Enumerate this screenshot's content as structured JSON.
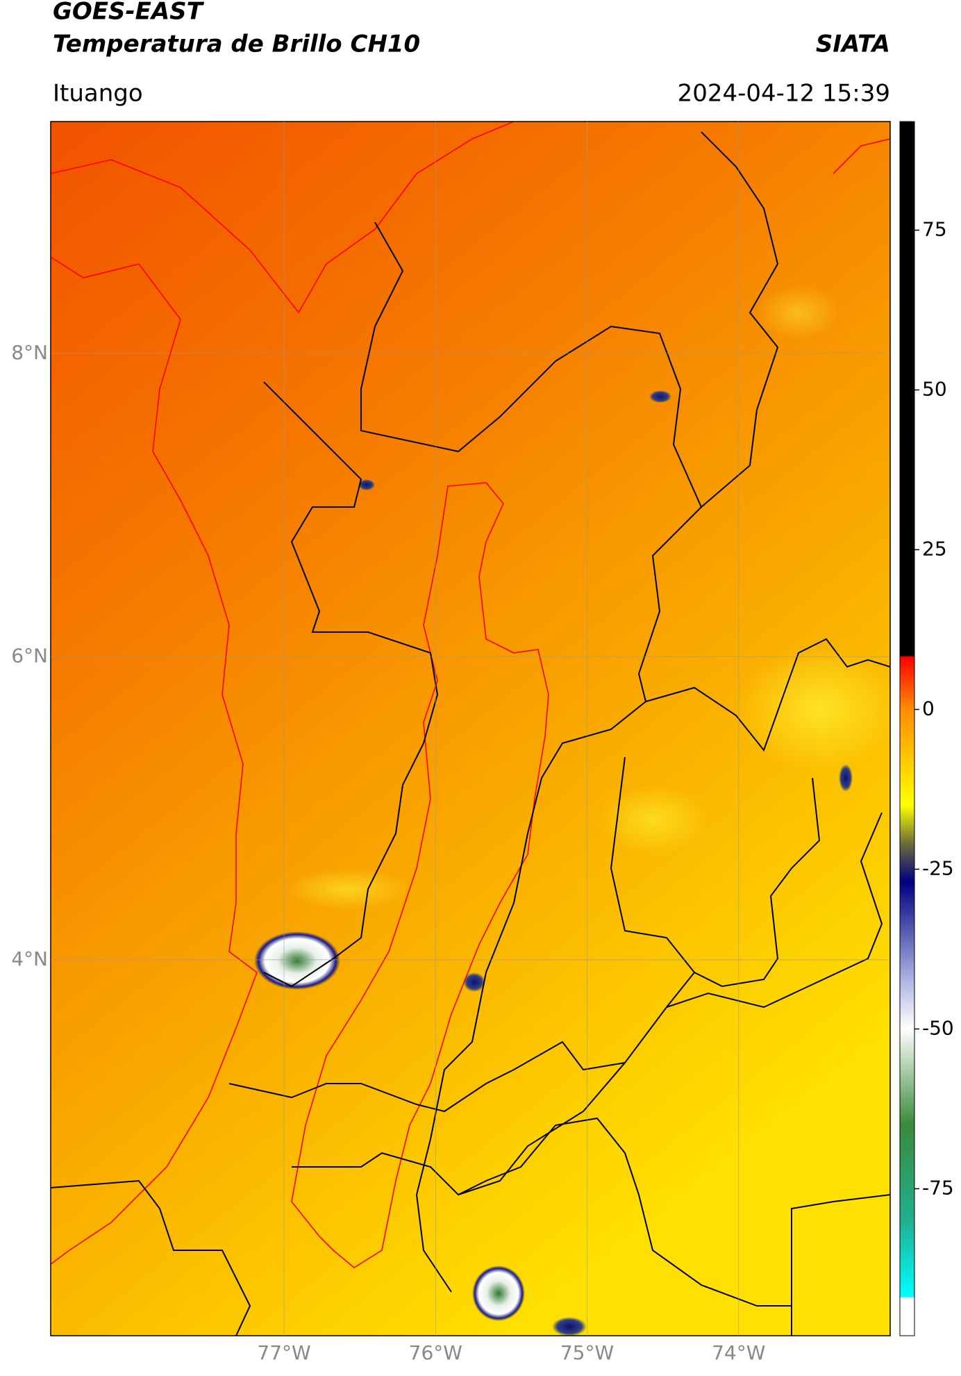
{
  "header": {
    "title": "GOES-EAST",
    "subtitle": "Temperatura de Brillo CH10",
    "source": "SIATA",
    "location": "Ituango",
    "datetime": "2024-04-12 15:39"
  },
  "chart_data": {
    "type": "map",
    "xlim": [
      -78.54,
      -73.0
    ],
    "ylim": [
      1.52,
      9.53
    ],
    "xticks": [
      {
        "value": -77,
        "label": "77°W"
      },
      {
        "value": -76,
        "label": "76°W"
      },
      {
        "value": -75,
        "label": "75°W"
      },
      {
        "value": -74,
        "label": "74°W"
      }
    ],
    "yticks": [
      {
        "value": 4,
        "label": "4°N"
      },
      {
        "value": 6,
        "label": "6°N"
      },
      {
        "value": 8,
        "label": "8°N"
      }
    ],
    "grid": true,
    "colorbar": {
      "lim": [
        -98,
        92
      ],
      "ticks": [
        -75,
        -50,
        -25,
        0,
        25,
        50,
        75
      ]
    }
  }
}
